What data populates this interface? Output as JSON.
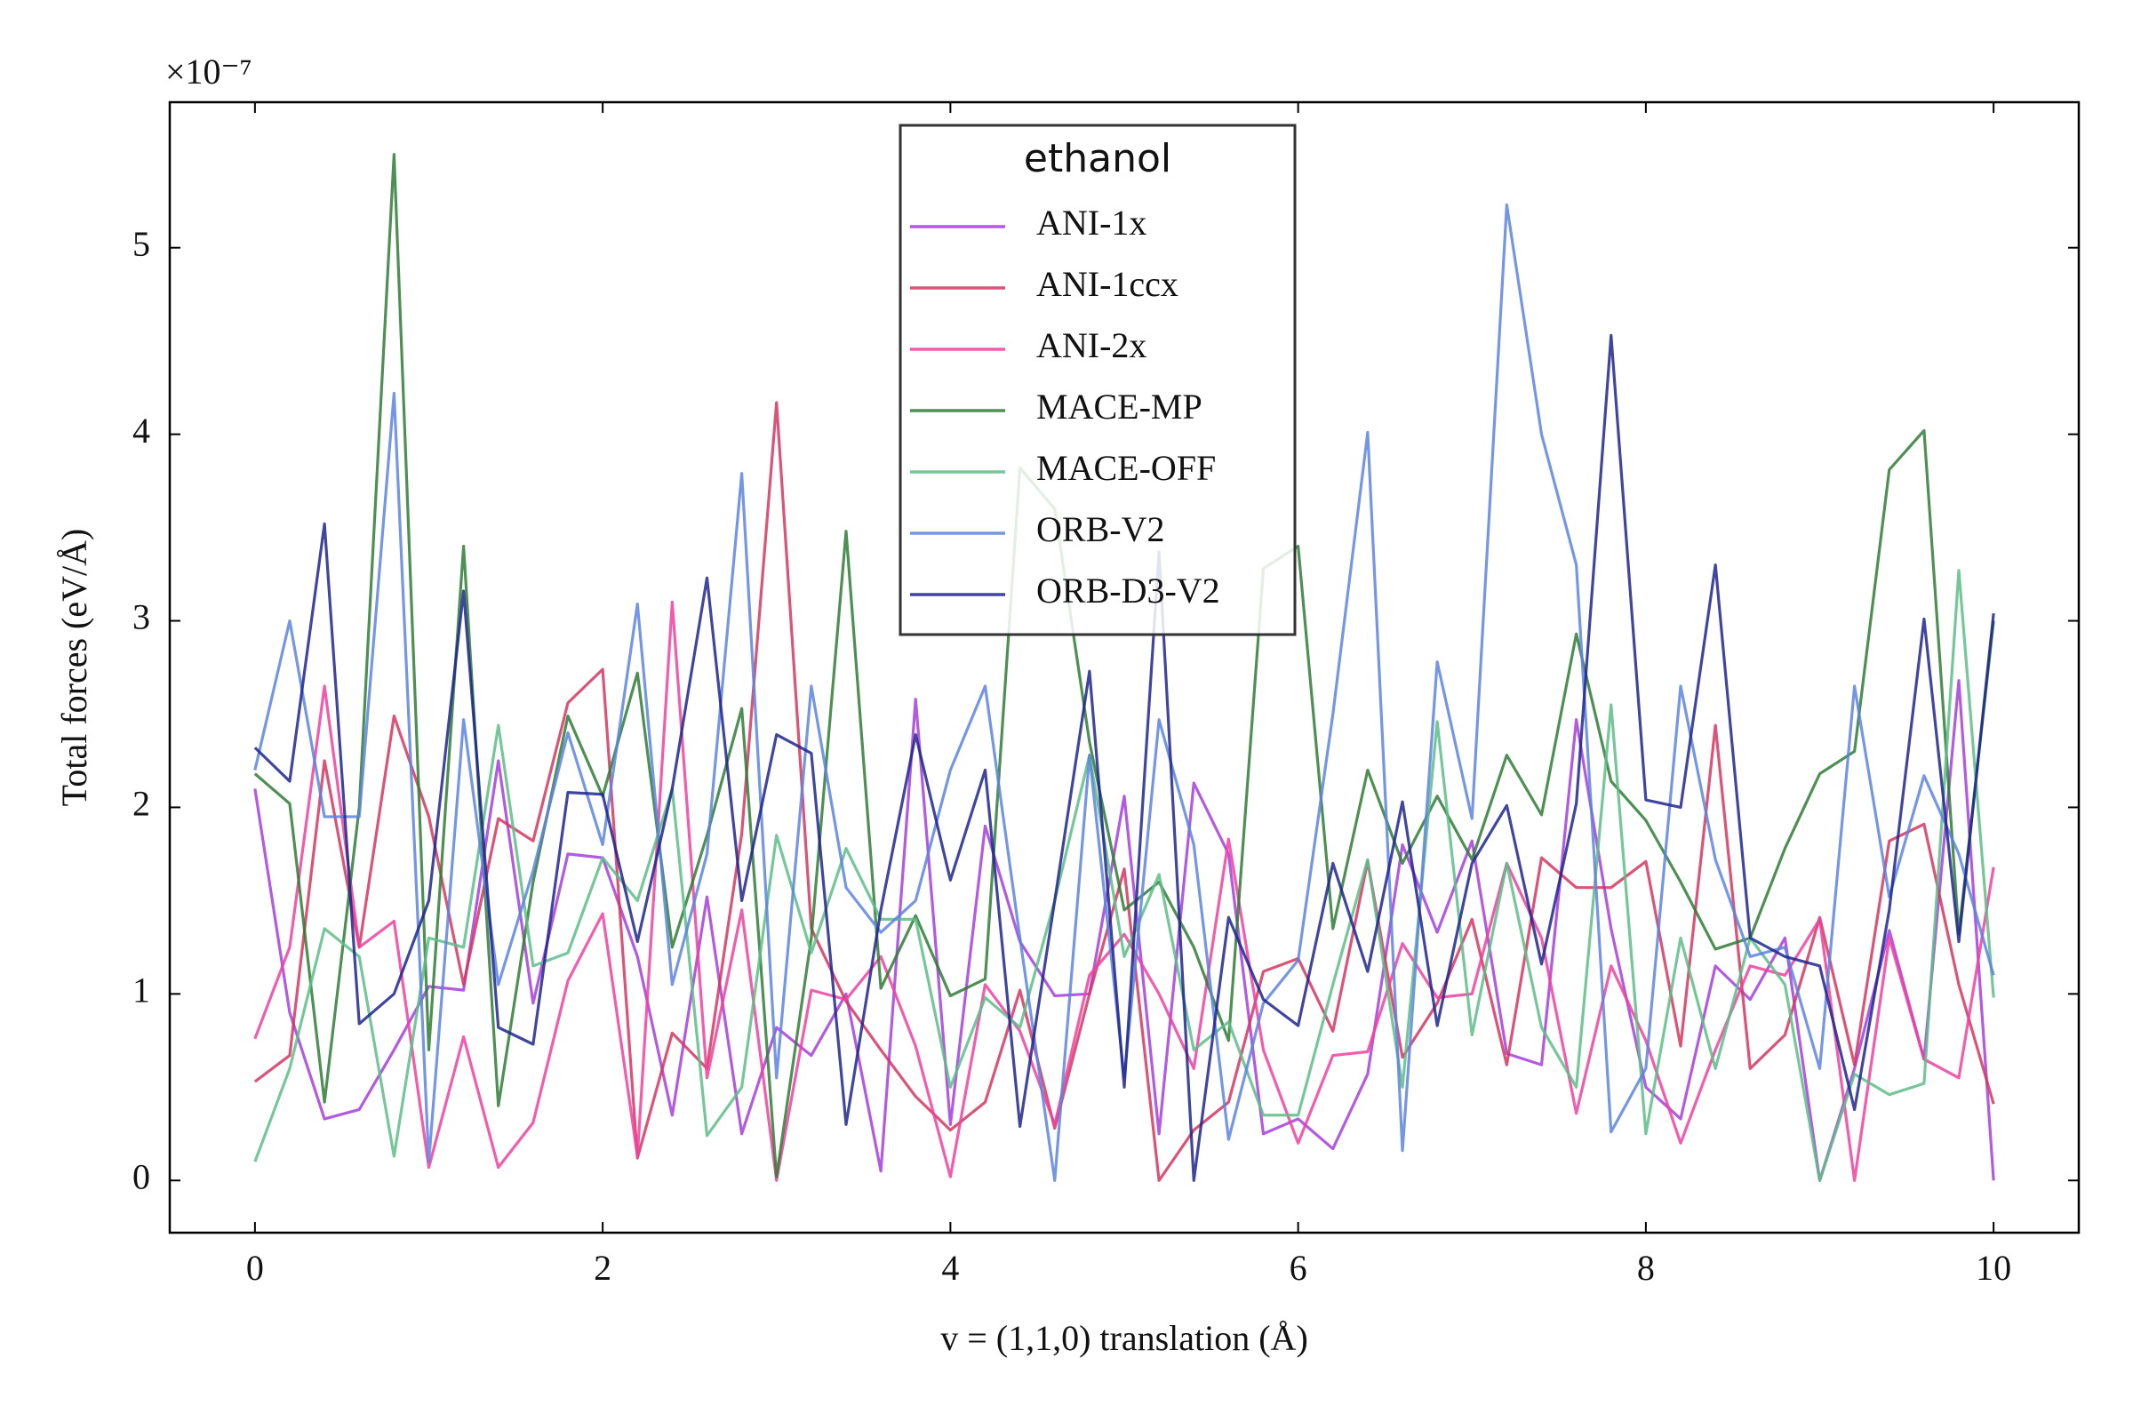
{
  "chart_data": {
    "type": "line",
    "offset_text": "×10⁻⁷",
    "xlabel": "v = (1,1,0)    translation (Å)",
    "ylabel": "Total forces   (eV/Å)",
    "legend_title": "ethanol",
    "legend_loc": "upper center",
    "xlim": [
      -0.49,
      10.49
    ],
    "ylim": [
      -0.28,
      5.78
    ],
    "xticks": [
      0,
      2,
      4,
      6,
      8,
      10
    ],
    "yticks": [
      0,
      1,
      2,
      3,
      4,
      5
    ],
    "x": [
      0,
      0.2,
      0.4,
      0.6,
      0.8,
      1,
      1.2,
      1.4,
      1.6,
      1.8,
      2,
      2.2,
      2.4,
      2.6,
      2.8,
      3,
      3.2,
      3.4,
      3.6,
      3.8,
      4,
      4.2,
      4.4,
      4.6,
      4.8,
      5,
      5.2,
      5.4,
      5.6,
      5.8,
      6,
      6.2,
      6.4,
      6.6,
      6.8,
      7,
      7.2,
      7.4,
      7.6,
      7.8,
      8,
      8.2,
      8.4,
      8.6,
      8.8,
      9,
      9.2,
      9.4,
      9.6,
      9.8,
      10
    ],
    "series": [
      {
        "name": "ANI-1x",
        "color": "#a43ddc",
        "values": [
          2.1,
          0.9,
          0.33,
          0.38,
          0.7,
          1.04,
          1.02,
          2.25,
          0.95,
          1.75,
          1.73,
          1.2,
          0.35,
          1.52,
          0.25,
          0.82,
          0.67,
          1.0,
          0.05,
          2.58,
          0.3,
          1.9,
          1.28,
          0.99,
          1.0,
          2.06,
          0.25,
          2.13,
          1.75,
          0.25,
          0.33,
          0.17,
          0.57,
          1.8,
          1.33,
          1.82,
          0.68,
          0.62,
          2.47,
          1.35,
          0.5,
          0.33,
          1.15,
          0.97,
          1.3,
          0.0,
          0.6,
          1.34,
          0.65,
          2.68,
          0.0
        ]
      },
      {
        "name": "ANI-1ccx",
        "color": "#d5355f",
        "values": [
          0.53,
          0.67,
          2.25,
          1.25,
          2.49,
          1.95,
          1.05,
          1.94,
          1.82,
          2.56,
          2.74,
          0.12,
          0.79,
          0.6,
          1.86,
          4.17,
          1.35,
          0.96,
          0.7,
          0.45,
          0.27,
          0.42,
          1.02,
          0.28,
          1.0,
          1.67,
          0.0,
          0.27,
          0.42,
          1.12,
          1.19,
          0.8,
          1.71,
          0.66,
          0.95,
          1.4,
          0.62,
          1.73,
          1.57,
          1.57,
          1.71,
          0.72,
          2.44,
          0.6,
          0.78,
          1.41,
          0.62,
          1.82,
          1.91,
          1.05,
          0.41
        ]
      },
      {
        "name": "ANI-2x",
        "color": "#f0409f",
        "values": [
          0.76,
          1.25,
          2.65,
          1.25,
          1.39,
          0.07,
          0.77,
          0.07,
          0.31,
          1.07,
          1.43,
          0.13,
          3.1,
          0.55,
          1.45,
          0.0,
          1.02,
          0.97,
          1.2,
          0.72,
          0.02,
          1.05,
          0.8,
          0.3,
          1.1,
          1.32,
          1.0,
          0.6,
          1.83,
          0.7,
          0.2,
          0.67,
          0.69,
          1.27,
          0.98,
          1.0,
          1.7,
          1.3,
          0.36,
          1.15,
          0.75,
          0.2,
          0.7,
          1.15,
          1.1,
          1.4,
          0.0,
          1.3,
          0.65,
          0.55,
          1.68
        ]
      },
      {
        "name": "MACE-MP",
        "color": "#2f7d35",
        "values": [
          2.18,
          2.02,
          0.42,
          2.0,
          5.5,
          0.7,
          3.4,
          0.4,
          1.6,
          2.49,
          2.06,
          2.72,
          1.25,
          1.85,
          2.53,
          0.02,
          1.3,
          3.48,
          1.03,
          1.42,
          0.99,
          1.08,
          3.82,
          3.6,
          2.35,
          1.45,
          1.6,
          1.25,
          0.75,
          3.28,
          3.4,
          1.35,
          2.2,
          1.7,
          2.06,
          1.72,
          2.28,
          1.96,
          2.93,
          2.14,
          1.93,
          1.6,
          1.24,
          1.3,
          1.78,
          2.18,
          2.3,
          3.81,
          4.02,
          1.32,
          3.0
        ]
      },
      {
        "name": "MACE-OFF",
        "color": "#5dbd88",
        "values": [
          0.1,
          0.6,
          1.35,
          1.2,
          0.13,
          1.3,
          1.25,
          2.44,
          1.15,
          1.22,
          1.73,
          1.5,
          2.1,
          0.24,
          0.5,
          1.85,
          1.22,
          1.78,
          1.4,
          1.4,
          0.5,
          0.98,
          0.82,
          1.5,
          2.28,
          1.2,
          1.64,
          0.7,
          0.85,
          0.35,
          0.35,
          1.05,
          1.72,
          0.5,
          2.46,
          0.78,
          1.7,
          0.82,
          0.5,
          2.55,
          0.25,
          1.3,
          0.6,
          1.3,
          1.05,
          0.0,
          0.57,
          0.46,
          0.52,
          3.27,
          0.98
        ]
      },
      {
        "name": "ORB-V2",
        "color": "#5c84e0",
        "values": [
          2.2,
          3.0,
          1.95,
          1.95,
          4.22,
          0.1,
          2.47,
          1.05,
          1.66,
          2.4,
          1.8,
          3.09,
          1.05,
          1.75,
          3.79,
          0.55,
          2.65,
          1.57,
          1.33,
          1.5,
          2.2,
          2.65,
          1.3,
          0.0,
          2.28,
          0.55,
          2.47,
          1.8,
          0.22,
          0.95,
          1.18,
          2.5,
          4.01,
          0.16,
          2.78,
          1.94,
          5.23,
          4.0,
          3.3,
          0.26,
          0.6,
          2.65,
          1.72,
          1.2,
          1.25,
          0.6,
          2.65,
          1.52,
          2.17,
          1.75,
          1.1
        ]
      },
      {
        "name": "ORB-D3-V2",
        "color": "#1f268f",
        "values": [
          2.32,
          2.14,
          3.52,
          0.84,
          1.0,
          1.5,
          3.16,
          0.82,
          0.73,
          2.08,
          2.07,
          1.28,
          2.1,
          3.23,
          1.5,
          2.39,
          2.29,
          0.3,
          1.45,
          2.39,
          1.61,
          2.2,
          0.29,
          1.5,
          2.73,
          0.5,
          3.37,
          0.0,
          1.41,
          0.97,
          0.83,
          1.7,
          1.12,
          2.03,
          0.83,
          1.7,
          2.01,
          1.16,
          2.02,
          4.53,
          2.04,
          2.0,
          3.3,
          1.3,
          1.2,
          1.15,
          0.38,
          1.45,
          3.01,
          1.28,
          3.04
        ]
      }
    ]
  }
}
